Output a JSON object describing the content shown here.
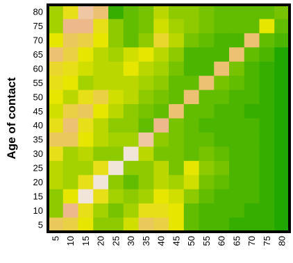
{
  "chart_data": {
    "type": "heatmap",
    "title": "",
    "xlabel": "",
    "ylabel": "Age of contact",
    "x_categories": [
      "5",
      "10",
      "15",
      "20",
      "25",
      "30",
      "35",
      "40",
      "45",
      "50",
      "55",
      "60",
      "65",
      "70",
      "75",
      "80"
    ],
    "y_categories": [
      "5",
      "10",
      "15",
      "20",
      "25",
      "30",
      "35",
      "40",
      "45",
      "50",
      "55",
      "60",
      "65",
      "70",
      "75",
      "80"
    ],
    "color_scale": {
      "low": "#0aa000",
      "mid": "#e6e600",
      "high_mid": "#eeb98a",
      "high": "#f2f2f2"
    },
    "z_rows_top_to_bottom": [
      [
        0.35,
        0.55,
        0.85,
        0.75,
        0.1,
        0.2,
        0.25,
        0.4,
        0.3,
        0.3,
        0.25,
        0.2,
        0.2,
        0.2,
        0.2,
        0.25
      ],
      [
        0.35,
        0.8,
        0.8,
        0.55,
        0.3,
        0.2,
        0.25,
        0.45,
        0.35,
        0.3,
        0.25,
        0.2,
        0.2,
        0.2,
        0.5,
        0.2
      ],
      [
        0.5,
        0.7,
        0.65,
        0.5,
        0.3,
        0.2,
        0.3,
        0.6,
        0.4,
        0.25,
        0.2,
        0.15,
        0.15,
        0.75,
        0.2,
        0.15
      ],
      [
        0.75,
        0.65,
        0.5,
        0.4,
        0.35,
        0.45,
        0.5,
        0.4,
        0.3,
        0.15,
        0.15,
        0.15,
        0.75,
        0.2,
        0.15,
        0.05
      ],
      [
        0.6,
        0.55,
        0.45,
        0.4,
        0.4,
        0.5,
        0.4,
        0.35,
        0.25,
        0.15,
        0.15,
        0.75,
        0.25,
        0.15,
        0.1,
        0.05
      ],
      [
        0.55,
        0.5,
        0.35,
        0.4,
        0.4,
        0.4,
        0.35,
        0.3,
        0.2,
        0.2,
        0.75,
        0.25,
        0.2,
        0.15,
        0.1,
        0.05
      ],
      [
        0.5,
        0.4,
        0.55,
        0.65,
        0.45,
        0.4,
        0.3,
        0.25,
        0.2,
        0.75,
        0.2,
        0.2,
        0.15,
        0.15,
        0.1,
        0.05
      ],
      [
        0.45,
        0.65,
        0.7,
        0.5,
        0.4,
        0.3,
        0.25,
        0.2,
        0.75,
        0.2,
        0.2,
        0.15,
        0.15,
        0.1,
        0.1,
        0.05
      ],
      [
        0.55,
        0.75,
        0.55,
        0.4,
        0.3,
        0.3,
        0.2,
        0.8,
        0.25,
        0.2,
        0.15,
        0.15,
        0.15,
        0.15,
        0.1,
        0.05
      ],
      [
        0.7,
        0.7,
        0.5,
        0.4,
        0.35,
        0.35,
        0.85,
        0.3,
        0.25,
        0.2,
        0.2,
        0.15,
        0.15,
        0.15,
        0.1,
        0.05
      ],
      [
        0.55,
        0.35,
        0.4,
        0.3,
        0.3,
        0.95,
        0.4,
        0.25,
        0.25,
        0.2,
        0.25,
        0.2,
        0.15,
        0.15,
        0.1,
        0.05
      ],
      [
        0.4,
        0.35,
        0.35,
        0.55,
        0.95,
        0.3,
        0.3,
        0.4,
        0.25,
        0.5,
        0.3,
        0.25,
        0.15,
        0.15,
        0.1,
        0.05
      ],
      [
        0.4,
        0.35,
        0.55,
        0.95,
        0.3,
        0.2,
        0.3,
        0.4,
        0.35,
        0.45,
        0.25,
        0.2,
        0.15,
        0.15,
        0.1,
        0.05
      ],
      [
        0.3,
        0.5,
        0.95,
        0.55,
        0.35,
        0.3,
        0.35,
        0.5,
        0.45,
        0.3,
        0.2,
        0.15,
        0.15,
        0.15,
        0.1,
        0.05
      ],
      [
        0.3,
        0.8,
        0.55,
        0.35,
        0.25,
        0.35,
        0.55,
        0.55,
        0.5,
        0.2,
        0.15,
        0.15,
        0.15,
        0.1,
        0.1,
        0.05
      ],
      [
        0.7,
        0.65,
        0.5,
        0.3,
        0.3,
        0.45,
        0.7,
        0.65,
        0.5,
        0.2,
        0.15,
        0.15,
        0.1,
        0.1,
        0.1,
        0.05
      ]
    ],
    "grid": false,
    "legend": "none"
  }
}
